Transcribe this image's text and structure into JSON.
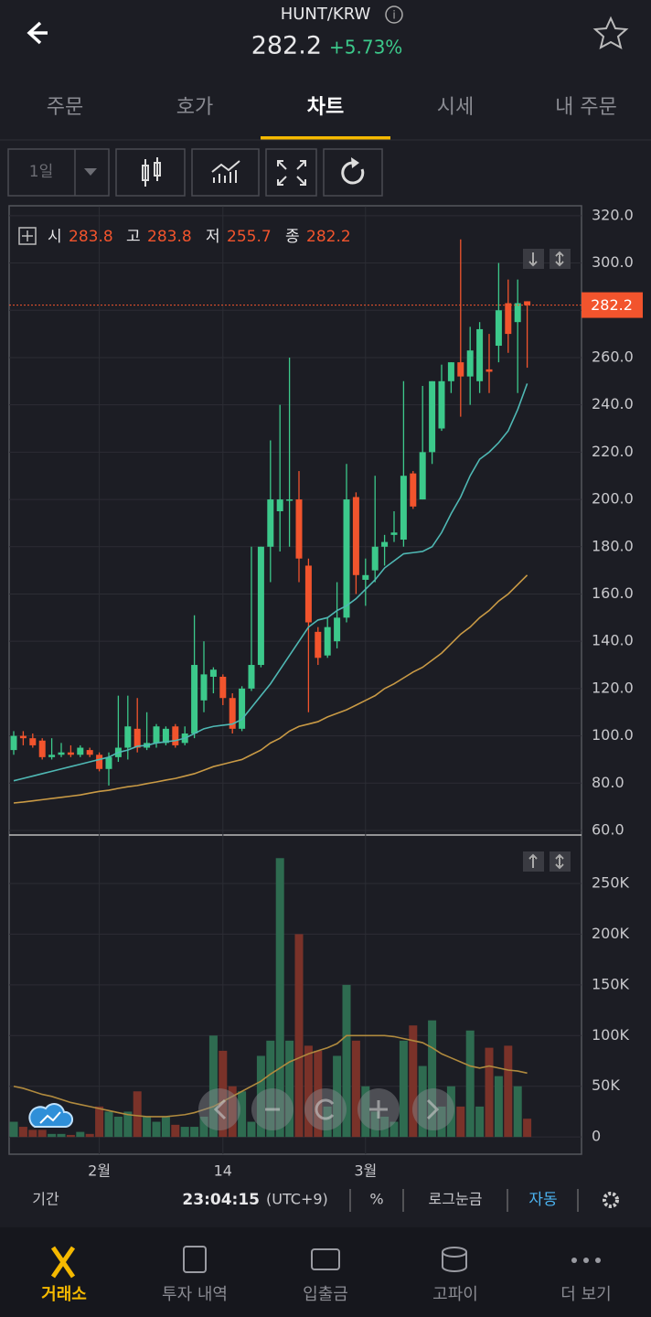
{
  "header": {
    "title": "HUNT/KRW",
    "price": "282.2",
    "change": "+5.73%"
  },
  "tabs": [
    "주문",
    "호가",
    "차트",
    "시세",
    "내 주문"
  ],
  "toolbar": {
    "period": "1일"
  },
  "legend": {
    "open": "시",
    "high": "고",
    "low": "저",
    "close": "종"
  },
  "status": {
    "period": "기간",
    "time": "23:04:15",
    "zone": "(UTC+9)",
    "percent": "%",
    "log": "로그눈금",
    "auto": "자동"
  },
  "nav": [
    "거래소",
    "투자 내역",
    "입출금",
    "고파이",
    "더 보기"
  ],
  "chart_data": {
    "type": "candlestick",
    "categories": [
      null,
      null,
      null,
      null,
      null,
      null,
      null,
      null,
      null,
      "2월",
      null,
      null,
      null,
      null,
      null,
      null,
      null,
      null,
      null,
      null,
      null,
      null,
      "14",
      null,
      null,
      null,
      null,
      null,
      null,
      null,
      null,
      null,
      null,
      null,
      null,
      null,
      null,
      "3월",
      null,
      null,
      null,
      null,
      null,
      null,
      null,
      null,
      null,
      null,
      null,
      null,
      null,
      null,
      null,
      null,
      null
    ],
    "open": [
      94,
      100,
      99,
      98,
      91,
      92,
      93,
      92,
      94,
      92,
      86,
      91,
      95,
      103,
      95,
      97,
      97,
      104,
      97,
      101,
      115,
      125,
      125,
      116,
      103,
      120,
      130,
      180,
      195,
      200,
      200,
      172,
      144,
      134,
      140,
      150,
      201,
      166,
      170,
      180,
      185,
      183,
      211,
      200,
      220,
      230,
      250,
      258,
      252,
      250,
      255,
      265,
      283,
      275,
      283.8
    ],
    "high": [
      102,
      102,
      101,
      99,
      99,
      97,
      96,
      96,
      95,
      93,
      93,
      117,
      117,
      116,
      110,
      105,
      104,
      105,
      104,
      151,
      140,
      129,
      126,
      118,
      121,
      180,
      180,
      225,
      240,
      260,
      212,
      175,
      146,
      150,
      165,
      215,
      203,
      175,
      210,
      185,
      195,
      250,
      212,
      248,
      250,
      257,
      258,
      310,
      273,
      275,
      270,
      300,
      293,
      293,
      283.8
    ],
    "low": [
      92,
      96,
      95,
      90,
      90,
      91,
      91,
      91,
      91,
      85,
      79,
      89,
      90,
      93,
      94,
      95,
      96,
      95,
      96,
      99,
      110,
      118,
      113,
      101,
      102,
      119,
      129,
      165,
      178,
      180,
      165,
      110,
      130,
      133,
      137,
      148,
      160,
      155,
      165,
      172,
      182,
      180,
      196,
      200,
      215,
      229,
      245,
      235,
      240,
      245,
      245,
      258,
      262,
      245,
      255.7
    ],
    "close": [
      100,
      99,
      96,
      91,
      92,
      93,
      92,
      95,
      92,
      86,
      91,
      95,
      104,
      95,
      97,
      104,
      103,
      96,
      101,
      130,
      126,
      128,
      116,
      103,
      120,
      130,
      180,
      200,
      200,
      200,
      175,
      148,
      133,
      146,
      150,
      200,
      168,
      168,
      180,
      182,
      186,
      210,
      197,
      220,
      250,
      250,
      258,
      252,
      263,
      272,
      254,
      280,
      270,
      283,
      282.2
    ],
    "up_color": "#3cc98b",
    "down_color": "#f2542d",
    "series": [
      {
        "color": "#4fb8b4",
        "values": [
          81,
          82,
          83,
          84,
          85,
          86,
          87,
          88,
          89,
          90,
          91,
          93,
          94,
          95.6,
          96,
          97,
          97.5,
          98,
          99,
          101,
          103,
          104,
          104.5,
          105,
          107,
          112,
          117,
          122,
          128,
          134,
          140,
          146,
          149,
          150,
          153,
          155,
          158,
          162,
          166,
          171,
          174,
          177,
          177.5,
          178,
          180,
          186,
          194,
          201,
          210,
          217,
          220,
          224,
          229,
          238,
          249
        ]
      },
      {
        "color": "#c99a45",
        "values": [
          71.6,
          72,
          72.5,
          73,
          73.5,
          74,
          74.5,
          75,
          75.8,
          76.5,
          77,
          77.8,
          78.5,
          79,
          79.8,
          80.5,
          81.3,
          82,
          83,
          84,
          85.5,
          87,
          88,
          89,
          90,
          92,
          94,
          97,
          99,
          102,
          104,
          105,
          106,
          108,
          109.5,
          111,
          113,
          115,
          117,
          120,
          122,
          124.5,
          127,
          129,
          132,
          135,
          139,
          143,
          146,
          150,
          153,
          157,
          160,
          164,
          168
        ]
      }
    ],
    "ylim": [
      60,
      324
    ],
    "yticks": [
      {
        "value": 60,
        "label": "60.0"
      },
      {
        "value": 80,
        "label": "80.0"
      },
      {
        "value": 100,
        "label": "100.0"
      },
      {
        "value": 120,
        "label": "120.0"
      },
      {
        "value": 140,
        "label": "140.0"
      },
      {
        "value": 160,
        "label": "160.0"
      },
      {
        "value": 180,
        "label": "180.0"
      },
      {
        "value": 200,
        "label": "200.0"
      },
      {
        "value": 220,
        "label": "220.0"
      },
      {
        "value": 240,
        "label": "240.0"
      },
      {
        "value": 260,
        "label": "260.0"
      },
      {
        "value": 280,
        "label": "280.0"
      },
      {
        "value": 300,
        "label": "300.0"
      },
      {
        "value": 320,
        "label": "320.0"
      }
    ],
    "grid": true,
    "volume": {
      "values": [
        15000,
        10000,
        7000,
        7000,
        3000,
        3000,
        2000,
        5000,
        3000,
        30000,
        25000,
        20000,
        25000,
        45000,
        20000,
        15000,
        20000,
        12000,
        10000,
        10000,
        20000,
        100000,
        85000,
        50000,
        45000,
        15000,
        80000,
        95000,
        275000,
        95000,
        200000,
        90000,
        85000,
        30000,
        80000,
        150000,
        95000,
        50000,
        25000,
        20000,
        15000,
        95000,
        110000,
        70000,
        115000,
        30000,
        50000,
        30000,
        105000,
        30000,
        88000,
        60000,
        90000,
        50000,
        18000
      ],
      "up_color": "#2e6b50",
      "down_color": "#7a3229",
      "ma": {
        "color": "#b08a3e",
        "values": [
          50000,
          48000,
          45000,
          42000,
          40000,
          37000,
          34000,
          32000,
          30000,
          28000,
          26000,
          24000,
          22000,
          21000,
          20000,
          20000,
          20000,
          21000,
          22000,
          24000,
          27000,
          30000,
          35000,
          40000,
          45000,
          50000,
          55000,
          62000,
          68000,
          74000,
          78000,
          82000,
          85000,
          88000,
          92000,
          100000,
          100000,
          100000,
          100000,
          100000,
          99000,
          97000,
          95000,
          93000,
          88000,
          82000,
          78000,
          74000,
          70000,
          68000,
          70000,
          68000,
          66000,
          65000,
          63000
        ]
      },
      "ylim": [
        -17000,
        296000
      ],
      "yticks": [
        0,
        {
          "value": 50000,
          "label": "50K"
        },
        {
          "value": 100000,
          "label": "100K"
        },
        {
          "value": 150000,
          "label": "150K"
        },
        {
          "value": 200000,
          "label": "200K"
        },
        {
          "value": 250000,
          "label": "250K"
        }
      ]
    }
  }
}
